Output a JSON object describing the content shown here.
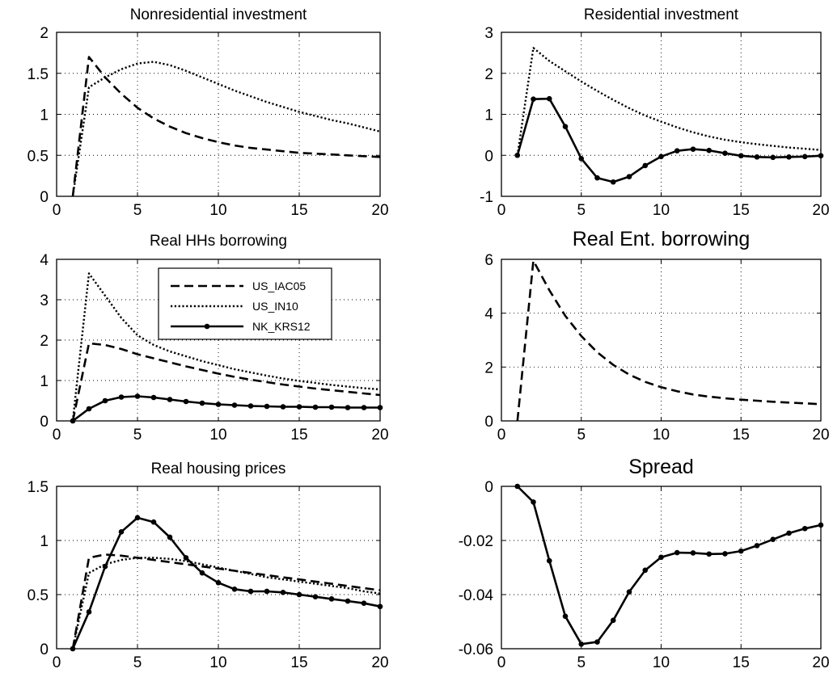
{
  "chart_data": [
    {
      "type": "line",
      "title": "Nonresidential investment",
      "xlim": [
        0,
        20
      ],
      "ylim": [
        0,
        2
      ],
      "xticks": [
        0,
        5,
        10,
        15,
        20
      ],
      "yticks": [
        0,
        0.5,
        1,
        1.5,
        2
      ],
      "ytick_labels": [
        "0",
        "0.5",
        "1",
        "1.5",
        "2"
      ],
      "grid": true,
      "series": [
        {
          "name": "US_IAC05",
          "style": "dashed",
          "x": [
            1,
            2,
            3,
            4,
            5,
            6,
            7,
            8,
            9,
            10,
            11,
            12,
            13,
            14,
            15,
            16,
            17,
            18,
            19,
            20
          ],
          "values": [
            0,
            1.7,
            1.45,
            1.25,
            1.08,
            0.95,
            0.85,
            0.77,
            0.71,
            0.66,
            0.62,
            0.59,
            0.57,
            0.55,
            0.53,
            0.52,
            0.51,
            0.5,
            0.49,
            0.48
          ]
        },
        {
          "name": "US_IN10",
          "style": "dotted",
          "x": [
            1,
            2,
            3,
            4,
            5,
            6,
            7,
            8,
            9,
            10,
            11,
            12,
            13,
            14,
            15,
            16,
            17,
            18,
            19,
            20
          ],
          "values": [
            0,
            1.33,
            1.45,
            1.55,
            1.62,
            1.64,
            1.6,
            1.53,
            1.45,
            1.37,
            1.29,
            1.22,
            1.15,
            1.09,
            1.03,
            0.98,
            0.93,
            0.89,
            0.84,
            0.79
          ]
        }
      ]
    },
    {
      "type": "line",
      "title": "Residential investment",
      "xlim": [
        0,
        20
      ],
      "ylim": [
        -1,
        3
      ],
      "xticks": [
        0,
        5,
        10,
        15,
        20
      ],
      "yticks": [
        -1,
        0,
        1,
        2,
        3
      ],
      "ytick_labels": [
        "-1",
        "0",
        "1",
        "2",
        "3"
      ],
      "grid": true,
      "series": [
        {
          "name": "US_IN10",
          "style": "dotted",
          "x": [
            1,
            2,
            3,
            4,
            5,
            6,
            7,
            8,
            9,
            10,
            11,
            12,
            13,
            14,
            15,
            16,
            17,
            18,
            19,
            20
          ],
          "values": [
            0,
            2.62,
            2.3,
            2.05,
            1.8,
            1.57,
            1.35,
            1.15,
            0.97,
            0.82,
            0.68,
            0.56,
            0.46,
            0.38,
            0.32,
            0.27,
            0.23,
            0.19,
            0.16,
            0.13
          ]
        },
        {
          "name": "NK_KRS12",
          "style": "solid-marker",
          "x": [
            1,
            2,
            3,
            4,
            5,
            6,
            7,
            8,
            9,
            10,
            11,
            12,
            13,
            14,
            15,
            16,
            17,
            18,
            19,
            20
          ],
          "values": [
            0,
            1.37,
            1.38,
            0.7,
            -0.08,
            -0.55,
            -0.65,
            -0.52,
            -0.25,
            -0.03,
            0.11,
            0.15,
            0.12,
            0.05,
            -0.01,
            -0.04,
            -0.05,
            -0.04,
            -0.03,
            -0.01
          ]
        }
      ]
    },
    {
      "type": "line",
      "title": "Real HHs borrowing",
      "xlim": [
        0,
        20
      ],
      "ylim": [
        0,
        4
      ],
      "xticks": [
        0,
        5,
        10,
        15,
        20
      ],
      "yticks": [
        0,
        1,
        2,
        3,
        4
      ],
      "ytick_labels": [
        "0",
        "1",
        "2",
        "3",
        "4"
      ],
      "grid": true,
      "legend": {
        "position": "top-right",
        "entries": [
          "US_IAC05",
          "US_IN10",
          "NK_KRS12"
        ]
      },
      "series": [
        {
          "name": "US_IAC05",
          "style": "dashed",
          "x": [
            1,
            2,
            3,
            4,
            5,
            6,
            7,
            8,
            9,
            10,
            11,
            12,
            13,
            14,
            15,
            16,
            17,
            18,
            19,
            20
          ],
          "values": [
            0,
            1.92,
            1.88,
            1.78,
            1.65,
            1.55,
            1.45,
            1.35,
            1.26,
            1.17,
            1.09,
            1.02,
            0.96,
            0.9,
            0.85,
            0.8,
            0.76,
            0.72,
            0.68,
            0.64
          ]
        },
        {
          "name": "US_IN10",
          "style": "dotted",
          "x": [
            1,
            2,
            3,
            4,
            5,
            6,
            7,
            8,
            9,
            10,
            11,
            12,
            13,
            14,
            15,
            16,
            17,
            18,
            19,
            20
          ],
          "values": [
            0,
            3.65,
            3.1,
            2.55,
            2.12,
            1.88,
            1.72,
            1.6,
            1.48,
            1.38,
            1.28,
            1.2,
            1.12,
            1.05,
            0.99,
            0.94,
            0.89,
            0.85,
            0.81,
            0.78
          ]
        },
        {
          "name": "NK_KRS12",
          "style": "solid-marker",
          "x": [
            1,
            2,
            3,
            4,
            5,
            6,
            7,
            8,
            9,
            10,
            11,
            12,
            13,
            14,
            15,
            16,
            17,
            18,
            19,
            20
          ],
          "values": [
            0,
            0.3,
            0.5,
            0.59,
            0.61,
            0.58,
            0.53,
            0.48,
            0.44,
            0.41,
            0.39,
            0.37,
            0.36,
            0.35,
            0.35,
            0.34,
            0.34,
            0.33,
            0.33,
            0.33
          ]
        }
      ]
    },
    {
      "type": "line",
      "title": "Real Ent. borrowing",
      "xlim": [
        0,
        20
      ],
      "ylim": [
        0,
        6
      ],
      "xticks": [
        0,
        5,
        10,
        15,
        20
      ],
      "yticks": [
        0,
        2,
        4,
        6
      ],
      "ytick_labels": [
        "0",
        "2",
        "4",
        "6"
      ],
      "grid": true,
      "series": [
        {
          "name": "US_IAC05",
          "style": "dashed",
          "x": [
            1,
            2,
            3,
            4,
            5,
            6,
            7,
            8,
            9,
            10,
            11,
            12,
            13,
            14,
            15,
            16,
            17,
            18,
            19,
            20
          ],
          "values": [
            0,
            5.95,
            4.85,
            3.9,
            3.15,
            2.55,
            2.08,
            1.72,
            1.45,
            1.25,
            1.1,
            0.98,
            0.9,
            0.84,
            0.79,
            0.75,
            0.71,
            0.68,
            0.65,
            0.62
          ]
        }
      ]
    },
    {
      "type": "line",
      "title": "Real housing prices",
      "xlim": [
        0,
        20
      ],
      "ylim": [
        0,
        1.5
      ],
      "xticks": [
        0,
        5,
        10,
        15,
        20
      ],
      "yticks": [
        0,
        0.5,
        1,
        1.5
      ],
      "ytick_labels": [
        "0",
        "0.5",
        "1",
        "1.5"
      ],
      "grid": true,
      "series": [
        {
          "name": "US_IAC05",
          "style": "dashed",
          "x": [
            1,
            2,
            3,
            4,
            5,
            6,
            7,
            8,
            9,
            10,
            11,
            12,
            13,
            14,
            15,
            16,
            17,
            18,
            19,
            20
          ],
          "values": [
            0,
            0.84,
            0.87,
            0.86,
            0.84,
            0.82,
            0.8,
            0.78,
            0.76,
            0.74,
            0.72,
            0.7,
            0.68,
            0.66,
            0.64,
            0.62,
            0.6,
            0.58,
            0.56,
            0.54
          ]
        },
        {
          "name": "US_IN10",
          "style": "dotted",
          "x": [
            1,
            2,
            3,
            4,
            5,
            6,
            7,
            8,
            9,
            10,
            11,
            12,
            13,
            14,
            15,
            16,
            17,
            18,
            19,
            20
          ],
          "values": [
            0,
            0.7,
            0.78,
            0.82,
            0.84,
            0.84,
            0.83,
            0.81,
            0.78,
            0.75,
            0.72,
            0.69,
            0.66,
            0.64,
            0.62,
            0.6,
            0.58,
            0.56,
            0.53,
            0.51
          ]
        },
        {
          "name": "NK_KRS12",
          "style": "solid-marker",
          "x": [
            1,
            2,
            3,
            4,
            5,
            6,
            7,
            8,
            9,
            10,
            11,
            12,
            13,
            14,
            15,
            16,
            17,
            18,
            19,
            20
          ],
          "values": [
            0,
            0.34,
            0.76,
            1.08,
            1.21,
            1.17,
            1.03,
            0.84,
            0.7,
            0.61,
            0.55,
            0.53,
            0.53,
            0.52,
            0.5,
            0.48,
            0.46,
            0.44,
            0.42,
            0.39
          ]
        }
      ]
    },
    {
      "type": "line",
      "title": "Spread",
      "xlim": [
        0,
        20
      ],
      "ylim": [
        -0.06,
        0
      ],
      "xticks": [
        0,
        5,
        10,
        15,
        20
      ],
      "yticks": [
        -0.06,
        -0.04,
        -0.02,
        0
      ],
      "ytick_labels": [
        "-0.06",
        "-0.04",
        "-0.02",
        "0"
      ],
      "grid": true,
      "series": [
        {
          "name": "NK_KRS12",
          "style": "solid-marker",
          "x": [
            1,
            2,
            3,
            4,
            5,
            6,
            7,
            8,
            9,
            10,
            11,
            12,
            13,
            14,
            15,
            16,
            17,
            18,
            19,
            20
          ],
          "values": [
            0,
            -0.0058,
            -0.0275,
            -0.048,
            -0.0583,
            -0.0575,
            -0.0495,
            -0.039,
            -0.031,
            -0.0262,
            -0.0245,
            -0.0246,
            -0.025,
            -0.0249,
            -0.0239,
            -0.0219,
            -0.0196,
            -0.0173,
            -0.0156,
            -0.0143
          ]
        }
      ]
    }
  ]
}
